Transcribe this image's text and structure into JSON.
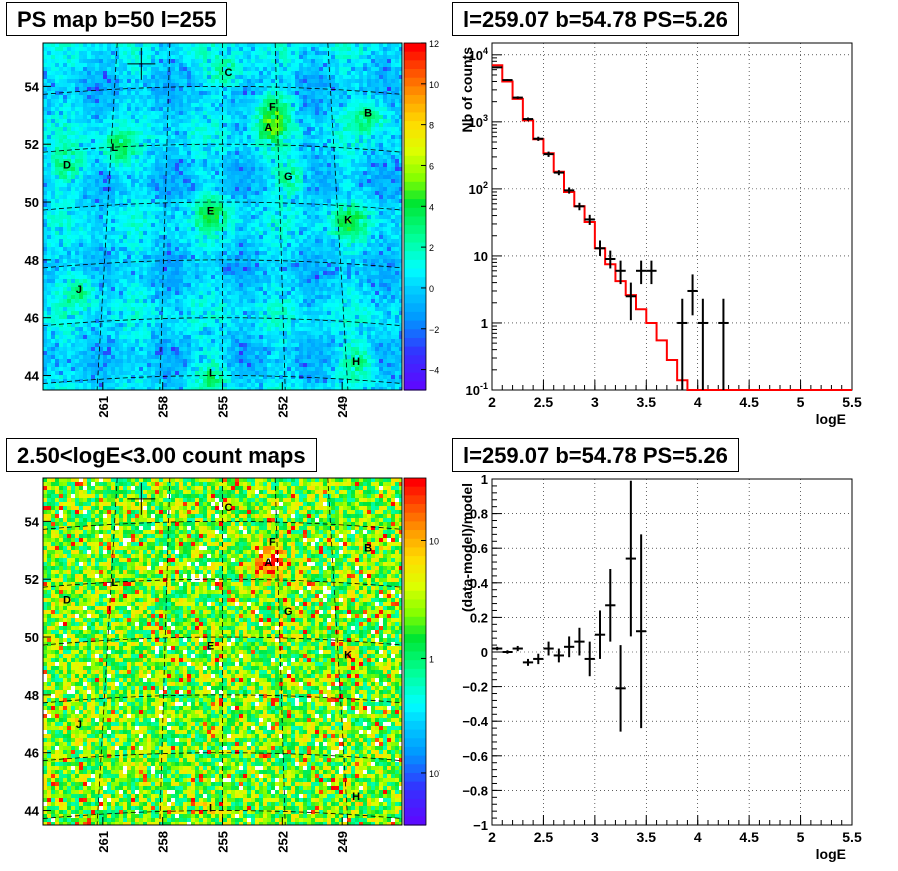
{
  "panels": {
    "ps_map": {
      "title": "PS map b=50 l=255"
    },
    "spectrum": {
      "title": "l=259.07 b=54.78 PS=5.26"
    },
    "count_map": {
      "title": "2.50<logE<3.00 count maps"
    },
    "residual": {
      "title": "l=259.07 b=54.78 PS=5.26"
    }
  },
  "colors": {
    "model_line": "#ff0000",
    "data": "#000000"
  },
  "chart_data": [
    {
      "type": "heatmap",
      "panel": "ps_map",
      "title": "PS map b=50 l=255",
      "x_ticks": [
        "261",
        "258",
        "255",
        "252",
        "249"
      ],
      "y_ticks": [
        "54",
        "52",
        "50",
        "48",
        "46",
        "44"
      ],
      "colorbar_ticks": [
        "12",
        "10",
        "8",
        "6",
        "4",
        "2",
        "0",
        "−2",
        "−4"
      ],
      "colorbar_range": [
        -5,
        12
      ],
      "source_labels": [
        "C",
        "F",
        "B",
        "A",
        "L",
        "D",
        "G",
        "E",
        "K",
        "J",
        "I",
        "H"
      ],
      "source_positions_deg": [
        {
          "label": "C",
          "l": 254.7,
          "b": 54.5
        },
        {
          "label": "F",
          "l": 252.5,
          "b": 53.3
        },
        {
          "label": "B",
          "l": 247.7,
          "b": 53.1
        },
        {
          "label": "A",
          "l": 252.7,
          "b": 52.6
        },
        {
          "label": "L",
          "l": 260.4,
          "b": 51.9
        },
        {
          "label": "D",
          "l": 262.8,
          "b": 51.3
        },
        {
          "label": "G",
          "l": 251.7,
          "b": 50.9
        },
        {
          "label": "E",
          "l": 255.6,
          "b": 49.7
        },
        {
          "label": "K",
          "l": 248.7,
          "b": 49.4
        },
        {
          "label": "J",
          "l": 262.2,
          "b": 47.0
        },
        {
          "label": "I",
          "l": 255.6,
          "b": 44.1
        },
        {
          "label": "H",
          "l": 248.3,
          "b": 44.5
        }
      ],
      "marker_position_deg": {
        "l": 259.07,
        "b": 54.78
      }
    },
    {
      "type": "line",
      "panel": "spectrum",
      "title": "l=259.07 b=54.78 PS=5.26",
      "xlabel": "logE",
      "ylabel": "Nb of counts",
      "x_ticks": [
        "2",
        "2.5",
        "3",
        "3.5",
        "4",
        "4.5",
        "5",
        "5.5"
      ],
      "y_ticks": [
        "10^4",
        "10^3",
        "10^2",
        "10",
        "1",
        "10^-1"
      ],
      "xlim": [
        2,
        5.5
      ],
      "ylim": [
        0.1,
        15000
      ],
      "y_scale": "log",
      "grid": true,
      "series": [
        {
          "kind": "step",
          "bin_edges": [
            2.0,
            2.1,
            2.2,
            2.3,
            2.4,
            2.5,
            2.6,
            2.7,
            2.8,
            2.9,
            3.0,
            3.1,
            3.2,
            3.3,
            3.4,
            3.5,
            3.6,
            3.7,
            3.8,
            3.9,
            4.0,
            4.1,
            4.2,
            4.3,
            4.4,
            4.5,
            4.6,
            4.7,
            4.8,
            4.9,
            5.0,
            5.1,
            5.2,
            5.3,
            5.4,
            5.5
          ],
          "values": [
            7000,
            4000,
            2200,
            1050,
            550,
            340,
            180,
            90,
            55,
            32,
            13,
            7.5,
            4.2,
            2.6,
            1.6,
            1.0,
            0.55,
            0.28,
            0.14,
            0.1,
            0.1,
            0.1,
            0.1,
            0.1,
            0.1,
            0.1,
            0.1,
            0.1,
            0.1,
            0.1,
            0.1,
            0.1,
            0.1,
            0.1,
            0.1
          ]
        },
        {
          "kind": "errorbar",
          "points": [
            {
              "x": 2.05,
              "y": 6500,
              "lo": 6300,
              "hi": 6700
            },
            {
              "x": 2.15,
              "y": 4200,
              "lo": 4070,
              "hi": 4330
            },
            {
              "x": 2.25,
              "y": 2300,
              "lo": 2200,
              "hi": 2400
            },
            {
              "x": 2.35,
              "y": 1100,
              "lo": 1040,
              "hi": 1160
            },
            {
              "x": 2.45,
              "y": 560,
              "lo": 520,
              "hi": 600
            },
            {
              "x": 2.55,
              "y": 330,
              "lo": 300,
              "hi": 360
            },
            {
              "x": 2.65,
              "y": 175,
              "lo": 160,
              "hi": 190
            },
            {
              "x": 2.75,
              "y": 95,
              "lo": 85,
              "hi": 105
            },
            {
              "x": 2.85,
              "y": 55,
              "lo": 48,
              "hi": 62
            },
            {
              "x": 2.95,
              "y": 35,
              "lo": 29,
              "hi": 41
            },
            {
              "x": 3.05,
              "y": 13,
              "lo": 10,
              "hi": 17
            },
            {
              "x": 3.15,
              "y": 9,
              "lo": 6.5,
              "hi": 12
            },
            {
              "x": 3.25,
              "y": 6,
              "lo": 3.8,
              "hi": 8.5
            },
            {
              "x": 3.35,
              "y": 2.5,
              "lo": 1.1,
              "hi": 4.0
            },
            {
              "x": 3.45,
              "y": 6,
              "lo": 3.8,
              "hi": 8.5
            },
            {
              "x": 3.55,
              "y": 6,
              "lo": 3.8,
              "hi": 8.5
            },
            {
              "x": 3.85,
              "y": 1,
              "lo": 0.1,
              "hi": 2.3
            },
            {
              "x": 3.95,
              "y": 3,
              "lo": 1.3,
              "hi": 5.3
            },
            {
              "x": 4.05,
              "y": 1,
              "lo": 0.1,
              "hi": 2.3
            },
            {
              "x": 4.25,
              "y": 1,
              "lo": 0.1,
              "hi": 2.3
            }
          ]
        }
      ]
    },
    {
      "type": "heatmap",
      "panel": "count_map",
      "title": "2.50<logE<3.00 count maps",
      "x_ticks": [
        "261",
        "258",
        "255",
        "252",
        "249"
      ],
      "y_ticks": [
        "54",
        "52",
        "50",
        "48",
        "46",
        "44"
      ],
      "colorbar_ticks": [
        "10",
        "1",
        "10^-1"
      ],
      "colorbar_scale": "log",
      "source_labels": [
        "C",
        "F",
        "B",
        "A",
        "L",
        "D",
        "G",
        "E",
        "K",
        "J",
        "I",
        "H"
      ]
    },
    {
      "type": "scatter",
      "panel": "residual",
      "title": "l=259.07 b=54.78 PS=5.26",
      "xlabel": "logE",
      "ylabel": "(data-model)/model",
      "x_ticks": [
        "2",
        "2.5",
        "3",
        "3.5",
        "4",
        "4.5",
        "5",
        "5.5"
      ],
      "y_ticks": [
        "1",
        "0.8",
        "0.6",
        "0.4",
        "0.2",
        "0",
        "−0.2",
        "−0.4",
        "−0.6",
        "−0.8",
        "−1"
      ],
      "xlim": [
        2,
        5.5
      ],
      "ylim": [
        -1,
        1
      ],
      "grid": true,
      "points": [
        {
          "x": 2.05,
          "y": 0.02,
          "err": 0.01
        },
        {
          "x": 2.15,
          "y": 0.0,
          "err": 0.01
        },
        {
          "x": 2.25,
          "y": 0.02,
          "err": 0.015
        },
        {
          "x": 2.35,
          "y": -0.06,
          "err": 0.02
        },
        {
          "x": 2.45,
          "y": -0.04,
          "err": 0.03
        },
        {
          "x": 2.55,
          "y": 0.02,
          "err": 0.04
        },
        {
          "x": 2.65,
          "y": -0.02,
          "err": 0.04
        },
        {
          "x": 2.75,
          "y": 0.03,
          "err": 0.06
        },
        {
          "x": 2.85,
          "y": 0.06,
          "err": 0.08
        },
        {
          "x": 2.95,
          "y": -0.04,
          "err": 0.1
        },
        {
          "x": 3.05,
          "y": 0.1,
          "err": 0.14
        },
        {
          "x": 3.15,
          "y": 0.27,
          "err": 0.21
        },
        {
          "x": 3.25,
          "y": -0.21,
          "err": 0.25
        },
        {
          "x": 3.35,
          "y": 0.54,
          "err": 0.45
        },
        {
          "x": 3.45,
          "y": 0.12,
          "err": 0.56
        }
      ]
    }
  ]
}
